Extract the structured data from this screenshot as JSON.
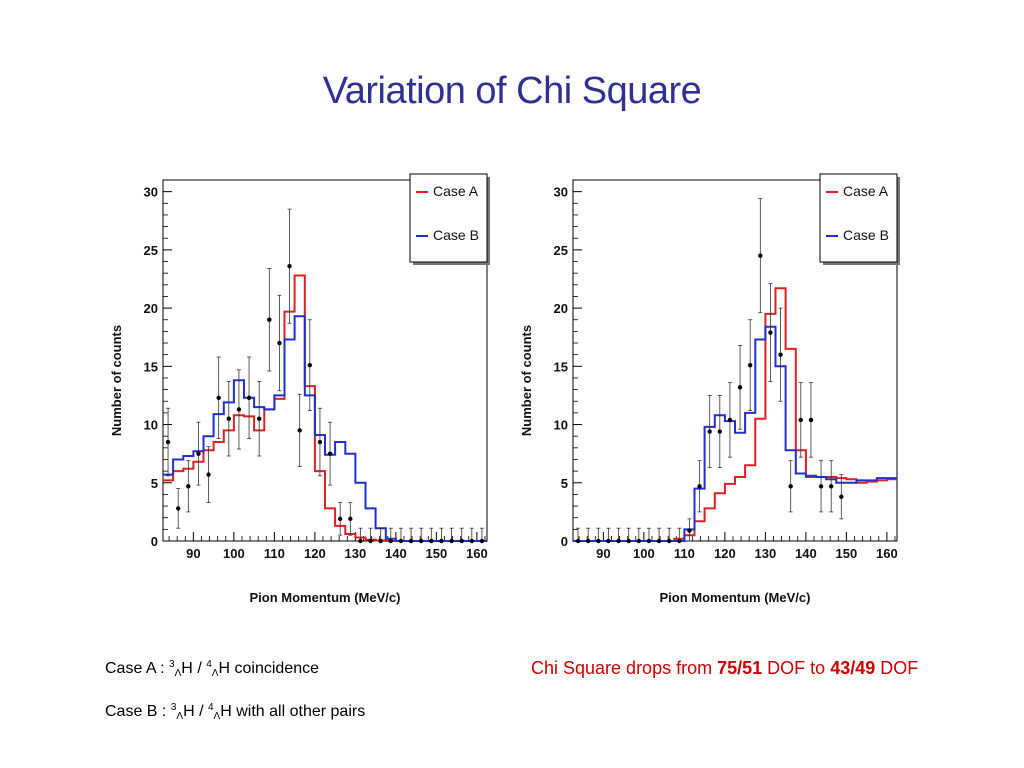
{
  "title": "Variation of Chi Square",
  "colors": {
    "title": "#2e3192",
    "case_a": "#e02020",
    "case_b": "#1f2fd0",
    "note": "#cc0000"
  },
  "notes": {
    "case_a_prefix": "Case A :",
    "case_a_iso1_mass": "3",
    "case_a_iso1_sub": "Λ",
    "case_a_iso1_el": "H",
    "case_a_sep": "/",
    "case_a_iso2_mass": "4",
    "case_a_iso2_sub": "Λ",
    "case_a_iso2_el": "H",
    "case_a_suffix": "coincidence",
    "case_b_prefix": "Case B :",
    "case_b_iso1_mass": "3",
    "case_b_iso1_sub": "Λ",
    "case_b_iso1_el": "H",
    "case_b_sep": "/",
    "case_b_iso2_mass": "4",
    "case_b_iso2_sub": "Λ",
    "case_b_iso2_el": "H",
    "case_b_suffix": "with all other pairs"
  },
  "chi_note": {
    "part1": "Chi Square drops from",
    "value1": "75/51",
    "part2": "DOF to",
    "value2": "43/49",
    "part3": "DOF"
  },
  "chart_data": [
    {
      "type": "step-histogram",
      "xlabel": "Pion Momentum (MeV/c)",
      "ylabel": "Number of counts",
      "xlim": [
        82.5,
        162.5
      ],
      "ylim": [
        0,
        31
      ],
      "xticks": [
        90,
        100,
        110,
        120,
        130,
        140,
        150,
        160
      ],
      "yticks": [
        0,
        5,
        10,
        15,
        20,
        25,
        30
      ],
      "bin_width": 2.5,
      "legend": {
        "placement": "top-right",
        "entries": [
          "Case A",
          "Case B"
        ]
      },
      "series": [
        {
          "name": "Case A",
          "color": "#e02020",
          "values": [
            5.2,
            6.0,
            6.2,
            6.8,
            7.8,
            8.5,
            9.5,
            10.8,
            10.7,
            9.5,
            11.3,
            12.2,
            19.7,
            22.8,
            13.3,
            6.0,
            2.8,
            1.3,
            0.6,
            0.3,
            0.1,
            0.05,
            0,
            0,
            0,
            0,
            0,
            0,
            0,
            0,
            0,
            0
          ]
        },
        {
          "name": "Case B",
          "color": "#1f2fd0",
          "values": [
            5.7,
            7.0,
            7.3,
            7.7,
            9.0,
            10.9,
            11.9,
            13.8,
            12.3,
            11.5,
            11.3,
            12.5,
            17.3,
            19.3,
            12.5,
            9.1,
            7.4,
            8.5,
            7.5,
            5.0,
            2.8,
            1.1,
            0.2,
            0,
            0,
            0,
            0,
            0,
            0,
            0,
            0,
            0
          ]
        }
      ],
      "points": [
        {
          "x": 83.75,
          "y": 8.5,
          "err": 2.9
        },
        {
          "x": 86.25,
          "y": 2.8,
          "err": 1.7
        },
        {
          "x": 88.75,
          "y": 4.7,
          "err": 2.2
        },
        {
          "x": 91.25,
          "y": 7.5,
          "err": 2.7
        },
        {
          "x": 93.75,
          "y": 5.7,
          "err": 2.4
        },
        {
          "x": 96.25,
          "y": 12.3,
          "err": 3.5
        },
        {
          "x": 98.75,
          "y": 10.5,
          "err": 3.2
        },
        {
          "x": 101.25,
          "y": 11.3,
          "err": 3.4
        },
        {
          "x": 103.75,
          "y": 12.3,
          "err": 3.5
        },
        {
          "x": 106.25,
          "y": 10.5,
          "err": 3.2
        },
        {
          "x": 108.75,
          "y": 19.0,
          "err": 4.4
        },
        {
          "x": 111.25,
          "y": 17.0,
          "err": 4.1
        },
        {
          "x": 113.75,
          "y": 23.6,
          "err": 4.9
        },
        {
          "x": 116.25,
          "y": 9.5,
          "err": 3.1
        },
        {
          "x": 118.75,
          "y": 15.1,
          "err": 3.9
        },
        {
          "x": 121.25,
          "y": 8.5,
          "err": 2.9
        },
        {
          "x": 123.75,
          "y": 7.5,
          "err": 2.7
        },
        {
          "x": 126.25,
          "y": 1.9,
          "err": 1.4
        },
        {
          "x": 128.75,
          "y": 1.9,
          "err": 1.4
        },
        {
          "x": 131.25,
          "y": 0,
          "err": 1.1
        },
        {
          "x": 133.75,
          "y": 0,
          "err": 1.1
        },
        {
          "x": 136.25,
          "y": 0,
          "err": 1.1
        },
        {
          "x": 138.75,
          "y": 0,
          "err": 1.1
        },
        {
          "x": 141.25,
          "y": 0,
          "err": 1.1
        },
        {
          "x": 143.75,
          "y": 0,
          "err": 1.1
        },
        {
          "x": 146.25,
          "y": 0,
          "err": 1.1
        },
        {
          "x": 148.75,
          "y": 0,
          "err": 1.1
        },
        {
          "x": 151.25,
          "y": 0,
          "err": 1.1
        },
        {
          "x": 153.75,
          "y": 0,
          "err": 1.1
        },
        {
          "x": 156.25,
          "y": 0,
          "err": 1.1
        },
        {
          "x": 158.75,
          "y": 0,
          "err": 1.1
        },
        {
          "x": 161.25,
          "y": 0,
          "err": 1.1
        }
      ]
    },
    {
      "type": "step-histogram",
      "xlabel": "Pion Momentum (MeV/c)",
      "ylabel": "Number of counts",
      "xlim": [
        82.5,
        162.5
      ],
      "ylim": [
        0,
        31
      ],
      "xticks": [
        90,
        100,
        110,
        120,
        130,
        140,
        150,
        160
      ],
      "yticks": [
        0,
        5,
        10,
        15,
        20,
        25,
        30
      ],
      "bin_width": 2.5,
      "legend": {
        "placement": "top-right",
        "entries": [
          "Case A",
          "Case B"
        ]
      },
      "series": [
        {
          "name": "Case A",
          "color": "#e02020",
          "values": [
            0,
            0,
            0,
            0,
            0,
            0,
            0,
            0,
            0,
            0,
            0.2,
            0.5,
            1.7,
            2.8,
            4.1,
            4.9,
            5.5,
            6.5,
            10.5,
            19.5,
            21.7,
            16.5,
            7.8,
            5.5,
            5.5,
            5.5,
            5.4,
            5.3,
            5.0,
            5.1,
            5.2,
            5.3
          ]
        },
        {
          "name": "Case B",
          "color": "#1f2fd0",
          "values": [
            0,
            0,
            0,
            0,
            0,
            0,
            0,
            0,
            0,
            0,
            0,
            1.0,
            4.5,
            9.8,
            10.8,
            10.3,
            9.3,
            11.0,
            17.3,
            18.4,
            15.0,
            7.8,
            5.8,
            5.6,
            5.5,
            5.3,
            5.0,
            5.0,
            5.2,
            5.2,
            5.4,
            5.4
          ]
        }
      ],
      "points": [
        {
          "x": 83.75,
          "y": 0,
          "err": 1.1
        },
        {
          "x": 86.25,
          "y": 0,
          "err": 1.1
        },
        {
          "x": 88.75,
          "y": 0,
          "err": 1.1
        },
        {
          "x": 91.25,
          "y": 0,
          "err": 1.1
        },
        {
          "x": 93.75,
          "y": 0,
          "err": 1.1
        },
        {
          "x": 96.25,
          "y": 0,
          "err": 1.1
        },
        {
          "x": 98.75,
          "y": 0,
          "err": 1.1
        },
        {
          "x": 101.25,
          "y": 0,
          "err": 1.1
        },
        {
          "x": 103.75,
          "y": 0,
          "err": 1.1
        },
        {
          "x": 106.25,
          "y": 0,
          "err": 1.1
        },
        {
          "x": 108.75,
          "y": 0,
          "err": 1.1
        },
        {
          "x": 111.25,
          "y": 0.9,
          "err": 1.0
        },
        {
          "x": 113.75,
          "y": 4.7,
          "err": 2.2
        },
        {
          "x": 116.25,
          "y": 9.4,
          "err": 3.1
        },
        {
          "x": 118.75,
          "y": 9.4,
          "err": 3.1
        },
        {
          "x": 121.25,
          "y": 10.4,
          "err": 3.2
        },
        {
          "x": 123.75,
          "y": 13.2,
          "err": 3.6
        },
        {
          "x": 126.25,
          "y": 15.1,
          "err": 3.9
        },
        {
          "x": 128.75,
          "y": 24.5,
          "err": 4.9
        },
        {
          "x": 131.25,
          "y": 17.9,
          "err": 4.2
        },
        {
          "x": 133.75,
          "y": 16.0,
          "err": 4.0
        },
        {
          "x": 136.25,
          "y": 4.7,
          "err": 2.2
        },
        {
          "x": 138.75,
          "y": 10.4,
          "err": 3.2
        },
        {
          "x": 141.25,
          "y": 10.4,
          "err": 3.2
        },
        {
          "x": 143.75,
          "y": 4.7,
          "err": 2.2
        },
        {
          "x": 146.25,
          "y": 4.7,
          "err": 2.2
        },
        {
          "x": 148.75,
          "y": 3.8,
          "err": 1.9
        }
      ]
    }
  ]
}
